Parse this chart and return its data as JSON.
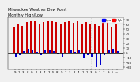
{
  "title": "Milwaukee Weather Dew Point",
  "subtitle": "Monthly High/Low",
  "background_color": "#f0f0f0",
  "high_color": "#cc0000",
  "low_color": "#0000cc",
  "grid_color": "#bbbbbb",
  "legend_blue": "#0000ff",
  "legend_red": "#ff0000",
  "ylim": [
    -35,
    75
  ],
  "yticks": [
    -30,
    -20,
    -10,
    0,
    10,
    20,
    30,
    40,
    50,
    60,
    70
  ],
  "xlabels": [
    "9",
    "1",
    "3",
    "8",
    "0",
    "1",
    "3",
    "7",
    "2",
    "5",
    "8",
    "9",
    "2",
    "3",
    "2",
    "4",
    "1",
    "1",
    "3",
    "0",
    "1",
    "7",
    "9",
    "5",
    "="
  ],
  "highs": [
    55,
    62,
    58,
    65,
    67,
    68,
    60,
    66,
    67,
    68,
    65,
    62,
    65,
    67,
    64,
    67,
    60,
    65,
    63,
    62,
    58,
    65,
    67,
    55,
    60
  ],
  "lows": [
    -8,
    -5,
    3,
    8,
    5,
    2,
    -5,
    6,
    5,
    3,
    -3,
    -8,
    0,
    5,
    2,
    5,
    -10,
    -5,
    -8,
    -30,
    -25,
    -5,
    5,
    8,
    3
  ],
  "bar_width": 0.38,
  "title_fontsize": 3.5,
  "tick_fontsize": 2.8,
  "legend_fontsize": 2.5
}
